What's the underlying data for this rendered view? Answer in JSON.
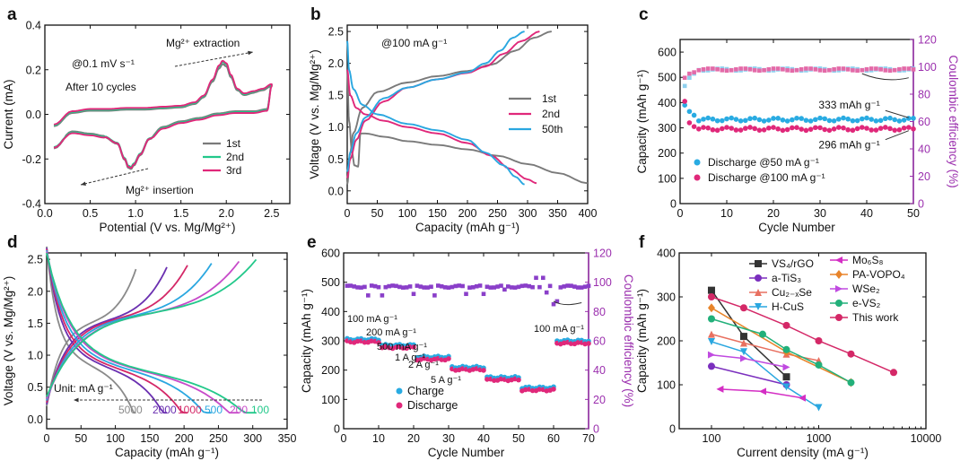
{
  "figure": {
    "colors": {
      "gray": "#7a7a7a",
      "green": "#22c88a",
      "pink": "#e0287a",
      "blue": "#2aa7e0",
      "cyan": "#29abe2",
      "magenta": "#e0287a",
      "purple": "#9b2fae",
      "violet": "#b55ac8"
    }
  },
  "chart_data": [
    {
      "panel": "a",
      "type": "line",
      "xlabel": "Potential (V vs. Mg/Mg²⁺)",
      "ylabel": "Current (mA)",
      "xlim": [
        0,
        2.7
      ],
      "ylim": [
        -0.4,
        0.4
      ],
      "xticks": [
        "0.0",
        "0.5",
        "1.0",
        "1.5",
        "2.0",
        "2.5"
      ],
      "xtick_vals": [
        0,
        0.5,
        1,
        1.5,
        2,
        2.5
      ],
      "yticks": [
        "-0.4",
        "-0.2",
        "0.0",
        "0.2",
        "0.4"
      ],
      "ytick_vals": [
        -0.4,
        -0.2,
        0,
        0.2,
        0.4
      ],
      "annotations": {
        "rate": "@0.1 mV s⁻¹",
        "cycles": "After 10 cycles",
        "extraction": "Mg²⁺ extraction",
        "insertion": "Mg²⁺ insertion"
      },
      "series": [
        {
          "name": "1st",
          "color": "#7a7a7a",
          "peak_anodic": 0.225,
          "peak_cathodic": -0.245
        },
        {
          "name": "2nd",
          "color": "#22c88a",
          "peak_anodic": 0.235,
          "peak_cathodic": -0.235
        },
        {
          "name": "3rd",
          "color": "#e0287a",
          "peak_anodic": 0.24,
          "peak_cathodic": -0.24
        }
      ],
      "upper_curve": {
        "x": [
          0.1,
          0.3,
          0.5,
          0.7,
          0.9,
          1.1,
          1.3,
          1.5,
          1.65,
          1.75,
          1.85,
          1.92,
          1.96,
          2.0,
          2.05,
          2.12,
          2.2,
          2.3,
          2.4,
          2.5
        ],
        "y": [
          -0.05,
          0.01,
          0.02,
          0.02,
          0.025,
          0.025,
          0.03,
          0.035,
          0.05,
          0.08,
          0.15,
          0.21,
          0.23,
          0.22,
          0.17,
          0.11,
          0.09,
          0.1,
          0.11,
          0.13
        ]
      },
      "lower_curve": {
        "x": [
          2.5,
          2.45,
          2.3,
          2.1,
          1.9,
          1.7,
          1.5,
          1.3,
          1.15,
          1.05,
          0.98,
          0.95,
          0.92,
          0.88,
          0.8,
          0.65,
          0.5,
          0.3,
          0.1
        ],
        "y": [
          0.13,
          0.02,
          0.01,
          0.01,
          0.0,
          -0.02,
          -0.035,
          -0.06,
          -0.11,
          -0.18,
          -0.225,
          -0.24,
          -0.235,
          -0.2,
          -0.13,
          -0.1,
          -0.09,
          -0.08,
          -0.15
        ]
      }
    },
    {
      "panel": "b",
      "type": "line",
      "xlabel": "Capacity (mAh g⁻¹)",
      "ylabel": "Voltage (V vs. Mg/Mg²⁺)",
      "xlim": [
        0,
        400
      ],
      "ylim": [
        -0.2,
        2.6
      ],
      "xticks": [
        "0",
        "50",
        "100",
        "150",
        "200",
        "250",
        "300",
        "350",
        "400"
      ],
      "xtick_vals": [
        0,
        50,
        100,
        150,
        200,
        250,
        300,
        350,
        400
      ],
      "yticks": [
        "0.0",
        "0.5",
        "1.0",
        "1.5",
        "2.0",
        "2.5"
      ],
      "ytick_vals": [
        0,
        0.5,
        1,
        1.5,
        2,
        2.5
      ],
      "annotations": {
        "rate": "@100 mA g⁻¹"
      },
      "series": [
        {
          "name": "1st",
          "color": "#7a7a7a",
          "discharge": {
            "x": [
              0,
              3,
              8,
              12,
              18,
              22,
              30,
              60,
              100,
              150,
              200,
              250,
              300,
              350,
              400
            ],
            "y": [
              1.9,
              1.1,
              0.6,
              0.4,
              0.38,
              0.9,
              0.9,
              0.85,
              0.78,
              0.72,
              0.65,
              0.55,
              0.42,
              0.28,
              0.12
            ]
          },
          "charge": {
            "x": [
              0,
              5,
              10,
              25,
              50,
              100,
              150,
              200,
              240,
              280,
              310,
              340
            ],
            "y": [
              0.1,
              0.6,
              0.9,
              1.3,
              1.55,
              1.7,
              1.8,
              1.88,
              1.98,
              2.2,
              2.4,
              2.5
            ]
          }
        },
        {
          "name": "2nd",
          "color": "#e0287a",
          "discharge": {
            "x": [
              0,
              5,
              15,
              30,
              60,
              100,
              150,
              200,
              240,
              270,
              300,
              315
            ],
            "y": [
              1.9,
              1.5,
              1.3,
              1.2,
              1.1,
              1.0,
              0.9,
              0.75,
              0.55,
              0.35,
              0.18,
              0.12
            ]
          },
          "charge": {
            "x": [
              0,
              5,
              15,
              30,
              60,
              100,
              150,
              200,
              230,
              260,
              290,
              320
            ],
            "y": [
              0.2,
              0.5,
              0.8,
              1.1,
              1.4,
              1.62,
              1.75,
              1.85,
              1.95,
              2.15,
              2.35,
              2.5
            ]
          }
        },
        {
          "name": "50th",
          "color": "#2aa7e0",
          "discharge": {
            "x": [
              0,
              3,
              10,
              25,
              50,
              100,
              150,
              200,
              230,
              260,
              280,
              295
            ],
            "y": [
              2.35,
              1.9,
              1.6,
              1.35,
              1.2,
              1.05,
              0.95,
              0.8,
              0.6,
              0.4,
              0.22,
              0.1
            ]
          },
          "charge": {
            "x": [
              0,
              5,
              15,
              30,
              60,
              100,
              150,
              200,
              230,
              255,
              275,
              295
            ],
            "y": [
              0.3,
              0.6,
              0.9,
              1.15,
              1.45,
              1.62,
              1.75,
              1.86,
              2.0,
              2.2,
              2.4,
              2.5
            ]
          }
        }
      ]
    },
    {
      "panel": "c",
      "type": "scatter",
      "xlabel": "Cycle Number",
      "ylabel": "Capacity (mAh g⁻¹)",
      "y2label": "Coulombic efficiency (%)",
      "xlim": [
        0,
        50
      ],
      "ylim": [
        0,
        650
      ],
      "y2lim": [
        0,
        120
      ],
      "xticks": [
        "0",
        "10",
        "20",
        "30",
        "40",
        "50"
      ],
      "xtick_vals": [
        0,
        10,
        20,
        30,
        40,
        50
      ],
      "yticks": [
        "0",
        "100",
        "200",
        "300",
        "400",
        "500",
        "600"
      ],
      "ytick_vals": [
        0,
        100,
        200,
        300,
        400,
        500,
        600
      ],
      "y2ticks": [
        "0",
        "20",
        "40",
        "60",
        "80",
        "100",
        "120"
      ],
      "y2tick_vals": [
        0,
        20,
        40,
        60,
        80,
        100,
        120
      ],
      "annotations": {
        "high": "333 mAh g⁻¹",
        "low": "296 mAh g⁻¹"
      },
      "series": [
        {
          "name": "Discharge @50 mA g⁻¹",
          "color": "#29abe2",
          "first": [
            390,
            365,
            350
          ],
          "level": 333,
          "ce_first": [
            86,
            92,
            95
          ],
          "ce_level": 98
        },
        {
          "name": "Discharge @100 mA g⁻¹",
          "color": "#e0287a",
          "first": [
            405,
            320,
            305
          ],
          "level": 296,
          "ce_first": [
            92,
            95,
            96
          ],
          "ce_level": 98
        }
      ]
    },
    {
      "panel": "d",
      "type": "line",
      "xlabel": "Capacity (mAh g⁻¹)",
      "ylabel": "Voltage (V vs. Mg/Mg²⁺)",
      "xlim": [
        0,
        350
      ],
      "ylim": [
        -0.15,
        2.6
      ],
      "xticks": [
        "0",
        "50",
        "100",
        "150",
        "200",
        "250",
        "300",
        "350"
      ],
      "xtick_vals": [
        0,
        50,
        100,
        150,
        200,
        250,
        300,
        350
      ],
      "yticks": [
        "0.0",
        "0.5",
        "1.0",
        "1.5",
        "2.0",
        "2.5"
      ],
      "ytick_vals": [
        0,
        0.5,
        1,
        1.5,
        2,
        2.5
      ],
      "unit_label": "Unit: mA g⁻¹",
      "series": [
        {
          "name": "5000",
          "color": "#8a8a8a",
          "cap": 130
        },
        {
          "name": "2000",
          "color": "#6a2fb0",
          "cap": 175
        },
        {
          "name": "1000",
          "color": "#d42867",
          "cap": 205
        },
        {
          "name": "500",
          "color": "#2aa7e0",
          "cap": 240
        },
        {
          "name": "200",
          "color": "#c74ac9",
          "cap": 280
        },
        {
          "name": "100",
          "color": "#22c88a",
          "cap": 305
        }
      ]
    },
    {
      "panel": "e",
      "type": "scatter",
      "xlabel": "Cycle Number",
      "ylabel": "Capacity (mAh g⁻¹)",
      "y2label": "Coulombic efficiency (%)",
      "xlim": [
        0,
        70
      ],
      "ylim": [
        0,
        600
      ],
      "y2lim": [
        0,
        120
      ],
      "xticks": [
        "0",
        "10",
        "20",
        "30",
        "40",
        "50",
        "60",
        "70"
      ],
      "xtick_vals": [
        0,
        10,
        20,
        30,
        40,
        50,
        60,
        70
      ],
      "yticks": [
        "0",
        "100",
        "200",
        "300",
        "400",
        "500",
        "600"
      ],
      "ytick_vals": [
        0,
        100,
        200,
        300,
        400,
        500,
        600
      ],
      "y2ticks": [
        "0",
        "20",
        "40",
        "60",
        "80",
        "100",
        "120"
      ],
      "y2tick_vals": [
        0,
        20,
        40,
        60,
        80,
        100,
        120
      ],
      "rate_labels": [
        "100 mA g⁻¹",
        "200 mA g⁻¹",
        "500 mA g⁻¹",
        "1 A g⁻¹",
        "2 A g⁻¹",
        "5 A g⁻¹",
        "100 mA g⁻¹"
      ],
      "segments": [
        {
          "cycles": [
            1,
            10
          ],
          "charge": 305,
          "discharge": 300
        },
        {
          "cycles": [
            11,
            20
          ],
          "charge": 285,
          "discharge": 280
        },
        {
          "cycles": [
            21,
            30
          ],
          "charge": 245,
          "discharge": 240
        },
        {
          "cycles": [
            31,
            40
          ],
          "charge": 210,
          "discharge": 205
        },
        {
          "cycles": [
            41,
            50
          ],
          "charge": 175,
          "discharge": 170
        },
        {
          "cycles": [
            51,
            60
          ],
          "charge": 140,
          "discharge": 135
        },
        {
          "cycles": [
            61,
            70
          ],
          "charge": 300,
          "discharge": 295
        }
      ],
      "ce": {
        "level": 97,
        "dips": [
          [
            7,
            91
          ],
          [
            11,
            91
          ],
          [
            20,
            92
          ],
          [
            26,
            91
          ],
          [
            35,
            92
          ],
          [
            40,
            92
          ],
          [
            46,
            95
          ],
          [
            55,
            103
          ],
          [
            57,
            103
          ],
          [
            58,
            93
          ],
          [
            60,
            85
          ],
          [
            61,
            87
          ]
        ]
      },
      "legend": [
        "Charge",
        "Discharge"
      ],
      "legend_colors": [
        "#29abe2",
        "#e0287a"
      ]
    },
    {
      "panel": "f",
      "type": "line",
      "xlabel": "Current density (mA g⁻¹)",
      "ylabel": "Capacity (mAh g⁻¹)",
      "xscale": "log",
      "xlim": [
        50,
        10000
      ],
      "ylim": [
        0,
        400
      ],
      "xticks": [
        "100",
        "1000",
        "10000"
      ],
      "xtick_vals": [
        100,
        1000,
        10000
      ],
      "yticks": [
        "0",
        "100",
        "200",
        "300",
        "400"
      ],
      "ytick_vals": [
        0,
        100,
        200,
        300,
        400
      ],
      "series": [
        {
          "name": "VS₄/rGO",
          "color": "#333333",
          "marker": "square",
          "x": [
            100,
            200,
            500
          ],
          "y": [
            315,
            210,
            118
          ]
        },
        {
          "name": "a-TiS₃",
          "color": "#7b2fbe",
          "marker": "circle",
          "x": [
            100,
            500
          ],
          "y": [
            142,
            100
          ]
        },
        {
          "name": "Cu₂₋ₓSe",
          "color": "#e87060",
          "marker": "triangle",
          "x": [
            100,
            200,
            500,
            1000
          ],
          "y": [
            215,
            195,
            170,
            155
          ]
        },
        {
          "name": "H-CuS",
          "color": "#2aa7e0",
          "marker": "tridown",
          "x": [
            100,
            200,
            500,
            1000
          ],
          "y": [
            198,
            175,
            95,
            48
          ]
        },
        {
          "name": "Mo₆S₈",
          "color": "#d42ec4",
          "marker": "triangle-left",
          "x": [
            120,
            300,
            700
          ],
          "y": [
            90,
            85,
            70
          ]
        },
        {
          "name": "PA-VOPO₄",
          "color": "#e8842a",
          "marker": "diamond",
          "x": [
            100,
            500,
            2000
          ],
          "y": [
            275,
            175,
            105
          ]
        },
        {
          "name": "WSe₂",
          "color": "#c04ae0",
          "marker": "triangle-right",
          "x": [
            100,
            200,
            500
          ],
          "y": [
            168,
            160,
            140
          ]
        },
        {
          "name": "e-VS₂",
          "color": "#22b07a",
          "marker": "circle",
          "x": [
            100,
            300,
            500,
            1000,
            2000
          ],
          "y": [
            250,
            215,
            180,
            145,
            105
          ]
        },
        {
          "name": "This work",
          "color": "#d42867",
          "marker": "circle",
          "x": [
            100,
            200,
            500,
            1000,
            2000,
            5000
          ],
          "y": [
            300,
            275,
            235,
            200,
            170,
            128
          ]
        }
      ]
    }
  ]
}
